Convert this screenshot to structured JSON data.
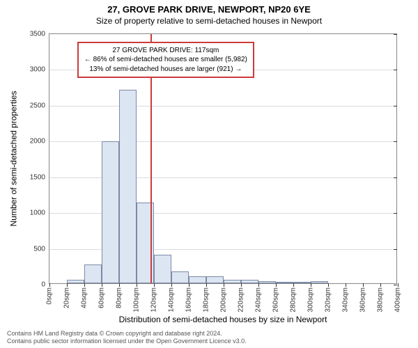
{
  "title": "27, GROVE PARK DRIVE, NEWPORT, NP20 6YE",
  "subtitle": "Size of property relative to semi-detached houses in Newport",
  "yaxis_label": "Number of semi-detached properties",
  "xaxis_label": "Distribution of semi-detached houses by size in Newport",
  "footer_line1": "Contains HM Land Registry data © Crown copyright and database right 2024.",
  "footer_line2": "Contains public sector information licensed under the Open Government Licence v3.0.",
  "info_box": {
    "line1": "27 GROVE PARK DRIVE: 117sqm",
    "line2": "← 86% of semi-detached houses are smaller (5,982)",
    "line3": "13% of semi-detached houses are larger (921) →",
    "border_color": "#cc3a3a",
    "top_pct": 3,
    "left_pct": 8
  },
  "chart": {
    "type": "histogram",
    "xlim": [
      0,
      400
    ],
    "ylim": [
      0,
      3500
    ],
    "ytick_step": 500,
    "xtick_step": 20,
    "xtick_suffix": "sqm",
    "bar_fill": "#dce5f2",
    "bar_stroke": "#7a8aa6",
    "grid_color": "#d7dce0",
    "background": "#ffffff",
    "marker": {
      "x": 117,
      "color": "#cc3a3a"
    },
    "bars": [
      {
        "x0": 0,
        "x1": 20,
        "count": 0
      },
      {
        "x0": 20,
        "x1": 40,
        "count": 50
      },
      {
        "x0": 40,
        "x1": 60,
        "count": 260
      },
      {
        "x0": 60,
        "x1": 80,
        "count": 1980
      },
      {
        "x0": 80,
        "x1": 100,
        "count": 2700
      },
      {
        "x0": 100,
        "x1": 120,
        "count": 1130
      },
      {
        "x0": 120,
        "x1": 140,
        "count": 400
      },
      {
        "x0": 140,
        "x1": 160,
        "count": 170
      },
      {
        "x0": 160,
        "x1": 180,
        "count": 100
      },
      {
        "x0": 180,
        "x1": 200,
        "count": 100
      },
      {
        "x0": 200,
        "x1": 220,
        "count": 50
      },
      {
        "x0": 220,
        "x1": 240,
        "count": 50
      },
      {
        "x0": 240,
        "x1": 260,
        "count": 25
      },
      {
        "x0": 260,
        "x1": 280,
        "count": 18
      },
      {
        "x0": 280,
        "x1": 300,
        "count": 10
      },
      {
        "x0": 300,
        "x1": 320,
        "count": 25
      },
      {
        "x0": 320,
        "x1": 340,
        "count": 0
      },
      {
        "x0": 340,
        "x1": 360,
        "count": 0
      },
      {
        "x0": 360,
        "x1": 380,
        "count": 0
      },
      {
        "x0": 380,
        "x1": 400,
        "count": 0
      }
    ]
  }
}
